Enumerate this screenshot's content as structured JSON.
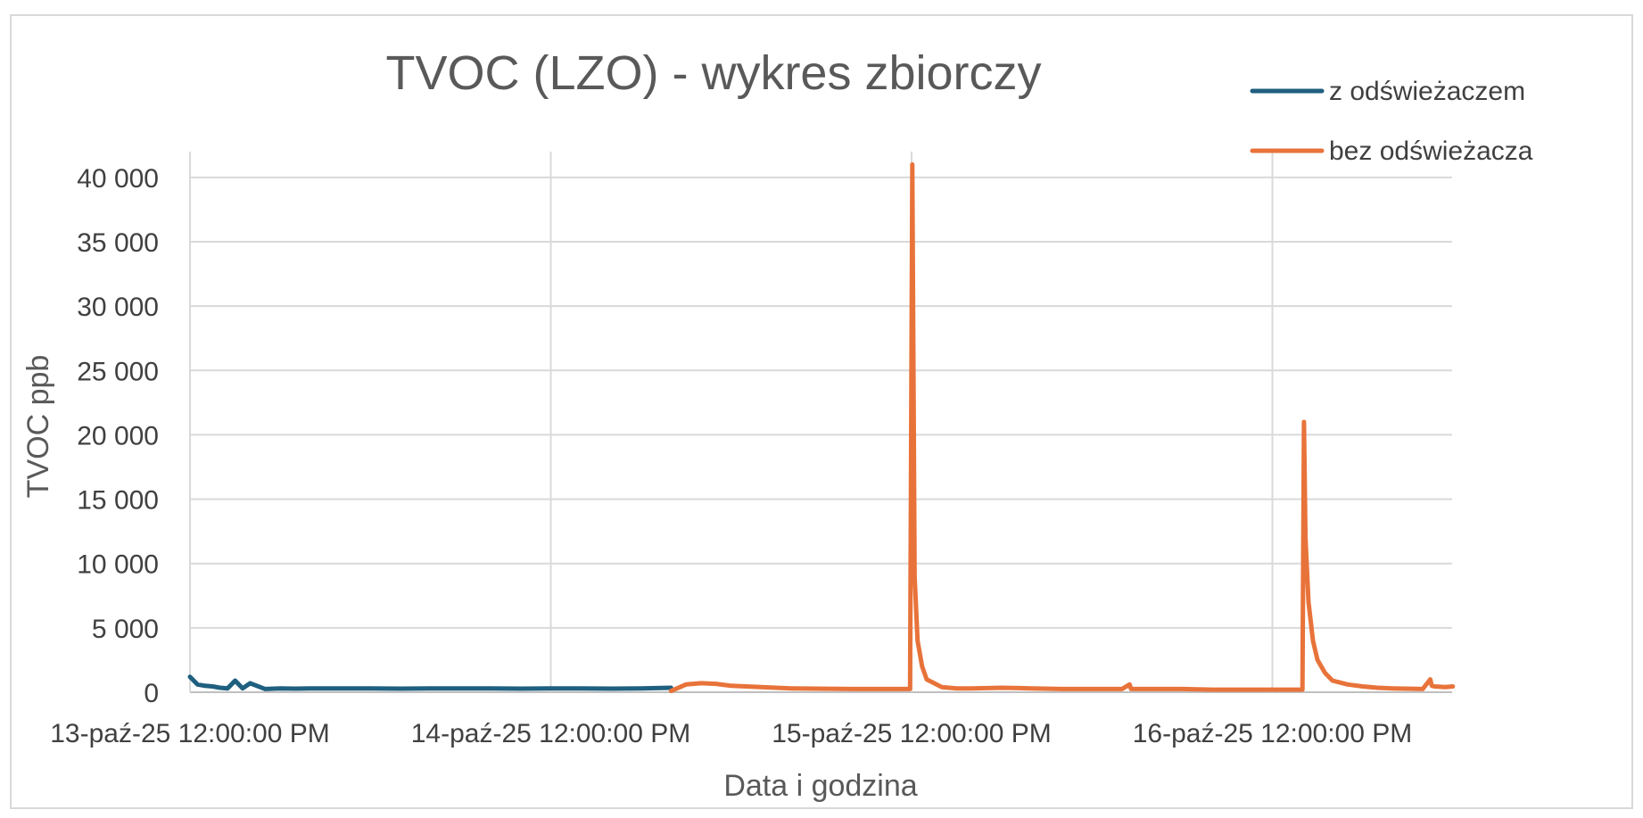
{
  "chart_data": {
    "type": "line",
    "title": "TVOC (LZO) - wykres zbiorczy",
    "xlabel": "Data i godzina",
    "ylabel": "TVOC ppb",
    "ylim": [
      0,
      42000
    ],
    "yticks": [
      0,
      5000,
      10000,
      15000,
      20000,
      25000,
      30000,
      35000,
      40000
    ],
    "ytick_labels": [
      "0",
      "5 000",
      "10 000",
      "15 000",
      "20 000",
      "25 000",
      "30 000",
      "35 000",
      "40 000"
    ],
    "xlim_hours": [
      0,
      84
    ],
    "xticks_hours": [
      0,
      24,
      48,
      72
    ],
    "xtick_labels": [
      "13-paź-25 12:00:00 PM",
      "14-paź-25 12:00:00 PM",
      "15-paź-25 12:00:00 PM",
      "16-paź-25 12:00:00 PM"
    ],
    "grid": true,
    "legend_position": "top-right",
    "series": [
      {
        "name": "z odświeżaczem",
        "color": "#1f5f7f",
        "x_hours": [
          0,
          0.5,
          1,
          1.5,
          2,
          2.5,
          3,
          3.5,
          4,
          5,
          6,
          7,
          8,
          10,
          12,
          14,
          16,
          18,
          20,
          22,
          24,
          26,
          28,
          30,
          32
        ],
        "values": [
          1200,
          600,
          500,
          450,
          350,
          300,
          900,
          300,
          700,
          250,
          300,
          280,
          300,
          290,
          300,
          280,
          300,
          290,
          300,
          280,
          290,
          300,
          280,
          300,
          350
        ]
      },
      {
        "name": "bez odświeżacza",
        "color": "#e8733a",
        "x_hours": [
          32,
          33,
          34,
          35,
          36,
          38,
          40,
          44,
          46,
          47.9,
          48.05,
          48.2,
          48.4,
          48.7,
          49,
          50,
          51,
          52,
          54,
          56,
          58,
          60,
          62,
          62.5,
          62.6,
          62.8,
          64,
          66,
          68,
          70,
          72,
          74,
          74.1,
          74.2,
          74.4,
          74.7,
          75,
          75.5,
          76,
          77,
          78,
          79,
          80,
          82,
          82.5,
          82.6,
          82.8,
          83.5,
          84
        ],
        "values": [
          100,
          600,
          700,
          650,
          500,
          400,
          300,
          250,
          250,
          250,
          41000,
          9000,
          4000,
          2000,
          1000,
          400,
          300,
          300,
          350,
          300,
          250,
          250,
          250,
          600,
          250,
          250,
          250,
          250,
          200,
          200,
          200,
          200,
          21000,
          12000,
          7000,
          4000,
          2500,
          1500,
          900,
          600,
          450,
          350,
          300,
          250,
          1000,
          500,
          450,
          400,
          450
        ]
      }
    ]
  }
}
